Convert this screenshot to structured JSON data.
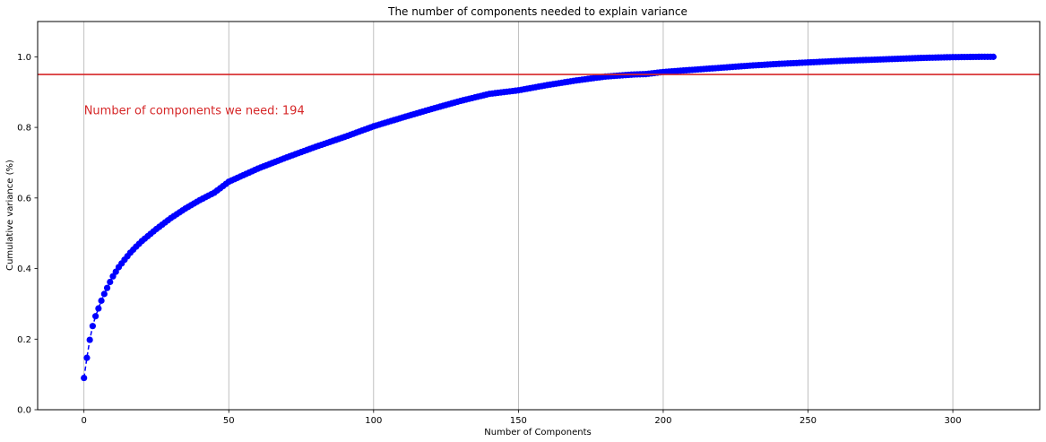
{
  "chart_data": {
    "type": "line",
    "title": "The number of components needed to explain variance",
    "xlabel": "Number of Components",
    "ylabel": "Cumulative variance (%)",
    "xlim": [
      -16,
      330
    ],
    "ylim": [
      0.0,
      1.1
    ],
    "xticks": [
      0,
      50,
      100,
      150,
      200,
      250,
      300
    ],
    "yticks": [
      0.0,
      0.2,
      0.4,
      0.6,
      0.8,
      1.0
    ],
    "xtick_labels": [
      "0",
      "50",
      "100",
      "150",
      "200",
      "250",
      "300"
    ],
    "ytick_labels": [
      "0.0",
      "0.2",
      "0.4",
      "0.6",
      "0.8",
      "1.0"
    ],
    "grid": "x-vertical",
    "series": [
      {
        "marker": "circle",
        "linestyle": "dashed",
        "color": "#0000ff",
        "x_range": [
          0,
          314
        ],
        "points": [
          [
            0,
            0.09
          ],
          [
            1,
            0.147
          ],
          [
            2,
            0.198
          ],
          [
            3,
            0.237
          ],
          [
            4,
            0.265
          ],
          [
            5,
            0.287
          ],
          [
            6,
            0.309
          ],
          [
            7,
            0.328
          ],
          [
            8,
            0.345
          ],
          [
            9,
            0.362
          ],
          [
            10,
            0.378
          ],
          [
            12,
            0.404
          ],
          [
            14,
            0.425
          ],
          [
            16,
            0.445
          ],
          [
            18,
            0.462
          ],
          [
            20,
            0.478
          ],
          [
            25,
            0.512
          ],
          [
            30,
            0.543
          ],
          [
            35,
            0.57
          ],
          [
            40,
            0.594
          ],
          [
            45,
            0.615
          ],
          [
            50,
            0.646
          ],
          [
            60,
            0.683
          ],
          [
            70,
            0.715
          ],
          [
            80,
            0.745
          ],
          [
            90,
            0.773
          ],
          [
            100,
            0.803
          ],
          [
            110,
            0.828
          ],
          [
            120,
            0.852
          ],
          [
            130,
            0.875
          ],
          [
            140,
            0.895
          ],
          [
            150,
            0.905
          ],
          [
            160,
            0.92
          ],
          [
            170,
            0.933
          ],
          [
            180,
            0.944
          ],
          [
            190,
            0.95
          ],
          [
            194,
            0.951
          ],
          [
            200,
            0.957
          ],
          [
            210,
            0.963
          ],
          [
            220,
            0.969
          ],
          [
            230,
            0.975
          ],
          [
            240,
            0.98
          ],
          [
            250,
            0.984
          ],
          [
            260,
            0.988
          ],
          [
            270,
            0.991
          ],
          [
            280,
            0.994
          ],
          [
            290,
            0.997
          ],
          [
            300,
            0.999
          ],
          [
            310,
            1.0
          ],
          [
            314,
            1.0
          ]
        ]
      }
    ],
    "threshold_line": {
      "y": 0.95,
      "color": "#d62728"
    },
    "annotation": {
      "text": "Number of components we need: 194",
      "x": 0,
      "y": 0.85,
      "color": "#d62728"
    }
  }
}
